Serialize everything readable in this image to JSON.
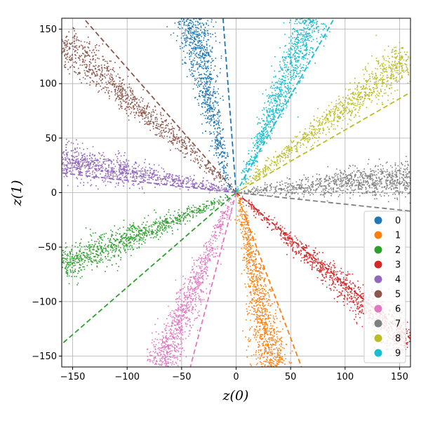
{
  "chart_data": {
    "type": "scatter",
    "title": "",
    "xlabel": "z(0)",
    "ylabel": "z(1)",
    "xlim": [
      -160,
      160
    ],
    "ylim": [
      -160,
      160
    ],
    "xticks": [
      -150,
      -100,
      -50,
      0,
      50,
      100,
      150
    ],
    "yticks": [
      -150,
      -100,
      -50,
      0,
      50,
      100,
      150
    ],
    "grid": true,
    "legend_position": "lower-right",
    "series": [
      {
        "name": "0",
        "color": "#1f77b4",
        "ray": [
          [
            -5,
            -3
          ],
          [
            -42,
            165
          ]
        ],
        "reference_line": [
          [
            0,
            0
          ],
          [
            -12,
            160
          ]
        ]
      },
      {
        "name": "1",
        "color": "#ff7f0e",
        "ray": [
          [
            3,
            -3
          ],
          [
            33,
            -160
          ]
        ],
        "reference_line": [
          [
            0,
            0
          ],
          [
            60,
            -160
          ]
        ]
      },
      {
        "name": "2",
        "color": "#2ca02c",
        "ray": [
          [
            -3,
            -3
          ],
          [
            -160,
            -67
          ]
        ],
        "reference_line": [
          [
            0,
            0
          ],
          [
            -160,
            -139
          ]
        ]
      },
      {
        "name": "3",
        "color": "#d62728",
        "ray": [
          [
            3,
            -3
          ],
          [
            160,
            -140
          ]
        ],
        "reference_line": [
          [
            0,
            0
          ],
          [
            160,
            -134
          ]
        ]
      },
      {
        "name": "4",
        "color": "#9467bd",
        "ray": [
          [
            -5,
            2
          ],
          [
            -160,
            30
          ]
        ],
        "reference_line": [
          [
            0,
            0
          ],
          [
            -160,
            18
          ]
        ]
      },
      {
        "name": "5",
        "color": "#8c564b",
        "ray": [
          [
            -3,
            3
          ],
          [
            -160,
            140
          ]
        ],
        "reference_line": [
          [
            0,
            0
          ],
          [
            -140,
            160
          ]
        ]
      },
      {
        "name": "6",
        "color": "#e377c2",
        "ray": [
          [
            -3,
            -3
          ],
          [
            -70,
            -160
          ]
        ],
        "reference_line": [
          [
            0,
            0
          ],
          [
            -42,
            -160
          ]
        ]
      },
      {
        "name": "7",
        "color": "#7f7f7f",
        "ray": [
          [
            3,
            0
          ],
          [
            160,
            14
          ]
        ],
        "reference_line": [
          [
            0,
            0
          ],
          [
            160,
            -17
          ]
        ]
      },
      {
        "name": "8",
        "color": "#bcbd22",
        "ray": [
          [
            3,
            3
          ],
          [
            160,
            125
          ]
        ],
        "reference_line": [
          [
            0,
            0
          ],
          [
            160,
            92
          ]
        ]
      },
      {
        "name": "9",
        "color": "#17becf",
        "ray": [
          [
            3,
            3
          ],
          [
            70,
            160
          ]
        ],
        "reference_line": [
          [
            0,
            0
          ],
          [
            90,
            160
          ]
        ]
      }
    ]
  }
}
